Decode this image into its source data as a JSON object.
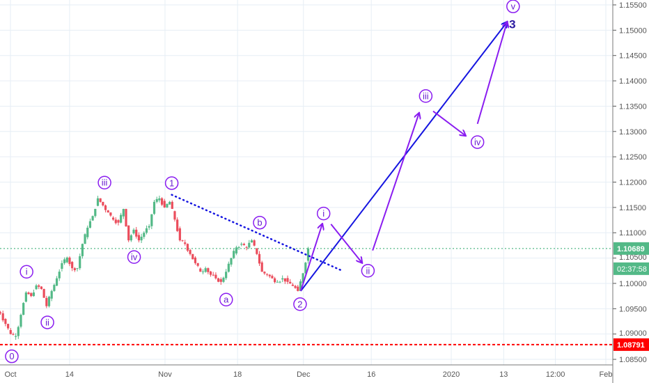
{
  "chart_data": {
    "type": "candlestick",
    "symbol_price_scale": "EURUSD-like",
    "ylim": [
      1.0835,
      1.1565
    ],
    "xlim": [
      -1.55,
      89.2
    ],
    "y_ticks": [
      "1.15500",
      "1.15000",
      "1.14500",
      "1.14000",
      "1.13500",
      "1.13000",
      "1.12500",
      "1.12000",
      "1.11500",
      "1.11000",
      "1.10500",
      "1.10000",
      "1.09500",
      "1.09000",
      "1.08500"
    ],
    "x_ticks": [
      {
        "label": "Oct",
        "t": 0
      },
      {
        "label": "14",
        "t": 8.8
      },
      {
        "label": "Nov",
        "t": 23
      },
      {
        "label": "18",
        "t": 33.8
      },
      {
        "label": "Dec",
        "t": 43.6
      },
      {
        "label": "16",
        "t": 53.7
      },
      {
        "label": "2020",
        "t": 65.6
      },
      {
        "label": "13",
        "t": 73.4
      },
      {
        "label": "12:00",
        "t": 81.1
      },
      {
        "label": "Feb",
        "t": 88.6
      }
    ],
    "closes": [
      1.0941,
      1.092,
      1.09,
      1.0896,
      1.0938,
      1.0982,
      1.0975,
      1.0996,
      1.0989,
      1.0955,
      1.0985,
      1.101,
      1.104,
      1.1051,
      1.103,
      1.103,
      1.1078,
      1.111,
      1.1133,
      1.1168,
      1.1154,
      1.114,
      1.1126,
      1.112,
      1.1147,
      1.1085,
      1.1106,
      1.1085,
      1.11,
      1.1113,
      1.1161,
      1.1168,
      1.115,
      1.1161,
      1.1126,
      1.1085,
      1.1078,
      1.1058,
      1.104,
      1.1023,
      1.103,
      1.1017,
      1.101,
      1.1003,
      1.1023,
      1.105,
      1.1071,
      1.1078,
      1.1071,
      1.1085,
      1.1058,
      1.1023,
      1.1017,
      1.101,
      1.1003,
      1.101,
      1.1003,
      1.0995,
      1.0985,
      1.102,
      1.1069
    ],
    "closes_t_range": [
      -1.5,
      44.3
    ],
    "current_price": {
      "value": "1.10689",
      "countdown": "02:37:58",
      "price": 1.10689,
      "color": "#53b987"
    },
    "support_line": {
      "value": "1.08791",
      "price": 1.08791,
      "color": "#ff0000"
    },
    "colors": {
      "up": "#53b987",
      "down": "#eb4d5c",
      "wave": "#8a1cf0",
      "blue": "#1515e0",
      "grid": "#e6eef5"
    },
    "wave_labels": [
      {
        "text": "0",
        "t": 0.2,
        "p": 1.0856
      },
      {
        "text": "i",
        "t": 2.4,
        "p": 1.1023
      },
      {
        "text": "ii",
        "t": 5.5,
        "p": 1.0923
      },
      {
        "text": "iii",
        "t": 14,
        "p": 1.1199
      },
      {
        "text": "iv",
        "t": 18.4,
        "p": 1.1052
      },
      {
        "text": "1",
        "t": 24,
        "p": 1.1198
      },
      {
        "text": "a",
        "t": 32.1,
        "p": 1.0968
      },
      {
        "text": "b",
        "t": 37.1,
        "p": 1.112
      },
      {
        "text": "2",
        "t": 43.1,
        "p": 1.0959
      },
      {
        "text": "i",
        "t": 46.6,
        "p": 1.1138
      },
      {
        "text": "ii",
        "t": 53.2,
        "p": 1.1025
      },
      {
        "text": "iii",
        "t": 61.8,
        "p": 1.137
      },
      {
        "text": "iv",
        "t": 69.5,
        "p": 1.1279
      },
      {
        "text": "v",
        "t": 74.8,
        "p": 1.1547
      }
    ],
    "big_label": {
      "text": "3",
      "t": 74.7,
      "p": 1.1512
    },
    "blue_line": [
      [
        43.2,
        1.0985
      ],
      [
        73.9,
        1.1516
      ]
    ],
    "trend_dotted": [
      [
        24,
        1.1175
      ],
      [
        49.2,
        1.1026
      ]
    ],
    "wave_arrows": [
      [
        [
          43.2,
          1.0985
        ],
        [
          46.4,
          1.1117
        ]
      ],
      [
        [
          47.7,
          1.1117
        ],
        [
          52.3,
          1.1041
        ]
      ],
      [
        [
          53.9,
          1.1065
        ],
        [
          60.8,
          1.1336
        ]
      ],
      [
        [
          62.9,
          1.134
        ],
        [
          67.7,
          1.1292
        ]
      ],
      [
        [
          69.5,
          1.1315
        ],
        [
          73.9,
          1.1516
        ]
      ]
    ]
  }
}
